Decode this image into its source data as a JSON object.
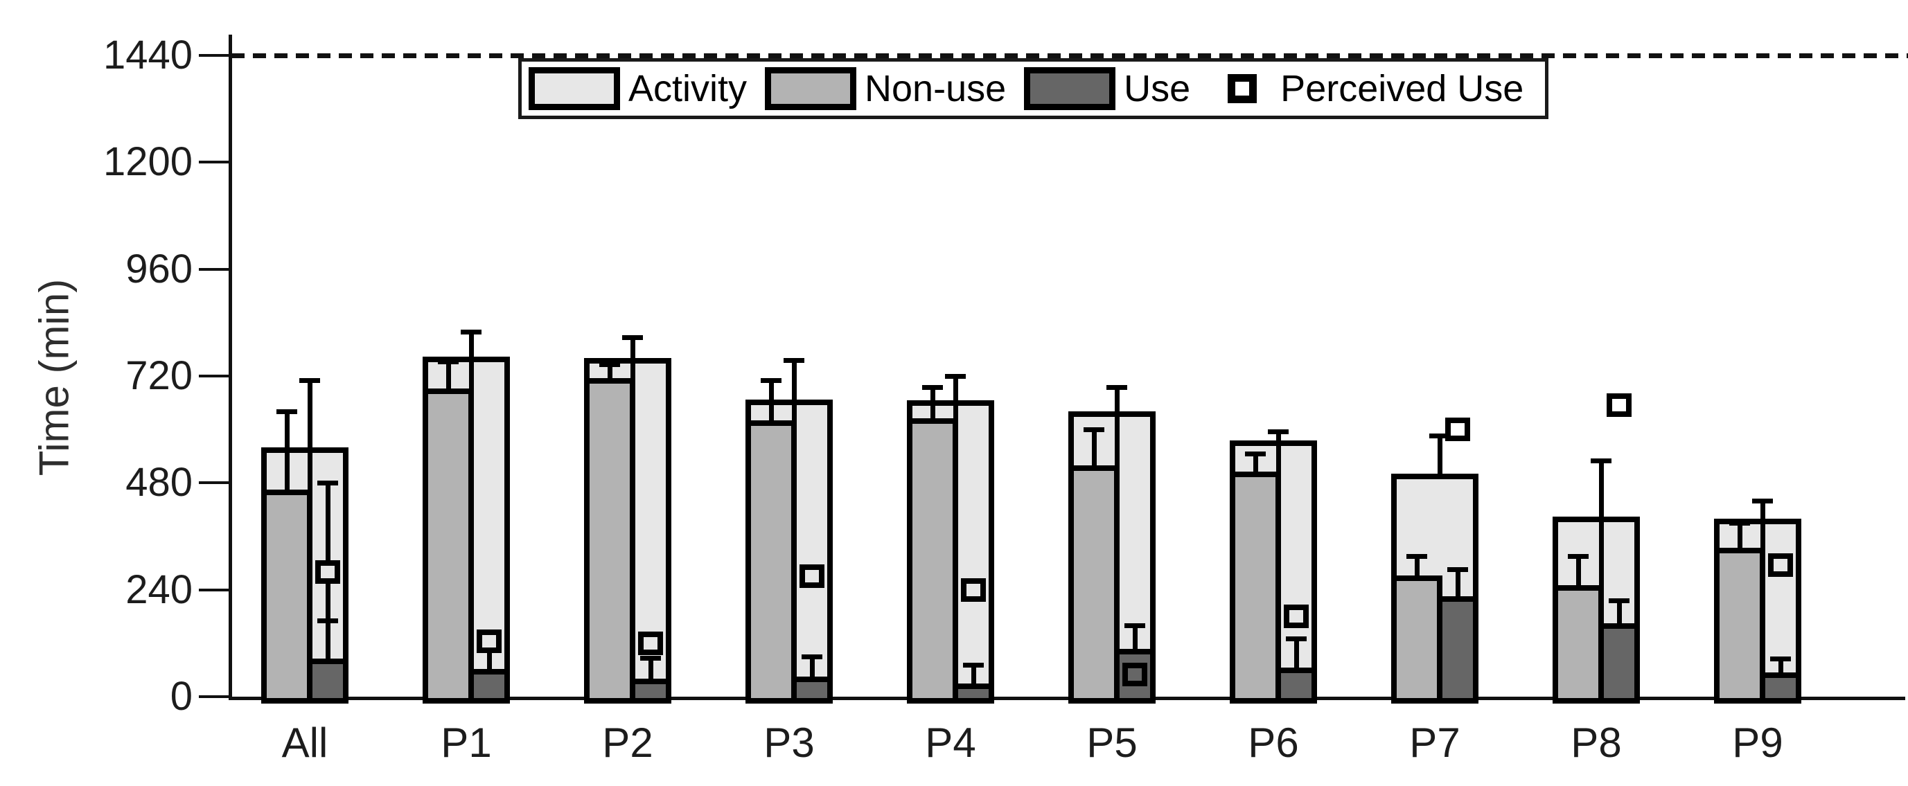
{
  "figure": {
    "background": "#ffffff",
    "description": "Stacked/grouped bar figure of daily time per participant"
  },
  "colors": {
    "activity_fill": "#e7e7e7",
    "nonuse_fill": "#b3b3b3",
    "use_fill": "#666666",
    "bar_border": "#000000",
    "axis": "#111111",
    "text": "#1c1c1c"
  },
  "chart_data": {
    "type": "bar",
    "title": "",
    "xlabel": "",
    "ylabel": "Time (min)",
    "ylim": [
      0,
      1500
    ],
    "yticks": [
      0,
      240,
      480,
      720,
      960,
      1200,
      1440
    ],
    "grid": false,
    "legend_position": "top",
    "dashed_reference_y": 1440,
    "categories": [
      "All",
      "P1",
      "P2",
      "P3",
      "P4",
      "P5",
      "P6",
      "P7",
      "P8",
      "P9"
    ],
    "series": [
      {
        "name": "Activity",
        "color": "#e7e7e7",
        "values": [
          560,
          763,
          760,
          667,
          665,
          640,
          575,
          500,
          405,
          400
        ],
        "err_high": [
          710,
          818,
          807,
          755,
          720,
          695,
          595,
          585,
          530,
          440
        ],
        "whisker_bottom_mode": [
          "nonuse",
          "nonuse",
          "nonuse",
          "nonuse",
          "nonuse",
          "nonuse",
          "nonuse",
          "self",
          "nonuse",
          "nonuse"
        ]
      },
      {
        "name": "Non-use",
        "color": "#b3b3b3",
        "values": [
          465,
          692,
          715,
          620,
          625,
          520,
          505,
          272,
          250,
          335
        ],
        "err_high": [
          640,
          752,
          745,
          710,
          695,
          600,
          545,
          315,
          315,
          390
        ]
      },
      {
        "name": "Use",
        "color": "#666666",
        "values": [
          85,
          62,
          40,
          45,
          30,
          108,
          65,
          225,
          165,
          55
        ],
        "err_high": [
          170,
          null,
          87,
          90,
          70,
          160,
          130,
          285,
          215,
          85
        ]
      },
      {
        "name": "Perceived Use",
        "marker": "open-square",
        "values": [
          280,
          125,
          120,
          270,
          240,
          50,
          180,
          600,
          655,
          295
        ],
        "whisker_high": [
          480,
          null,
          null,
          null,
          null,
          null,
          null,
          null,
          null,
          null
        ],
        "whisker_low": [
          170,
          62,
          null,
          null,
          null,
          null,
          null,
          null,
          null,
          null
        ]
      }
    ]
  }
}
